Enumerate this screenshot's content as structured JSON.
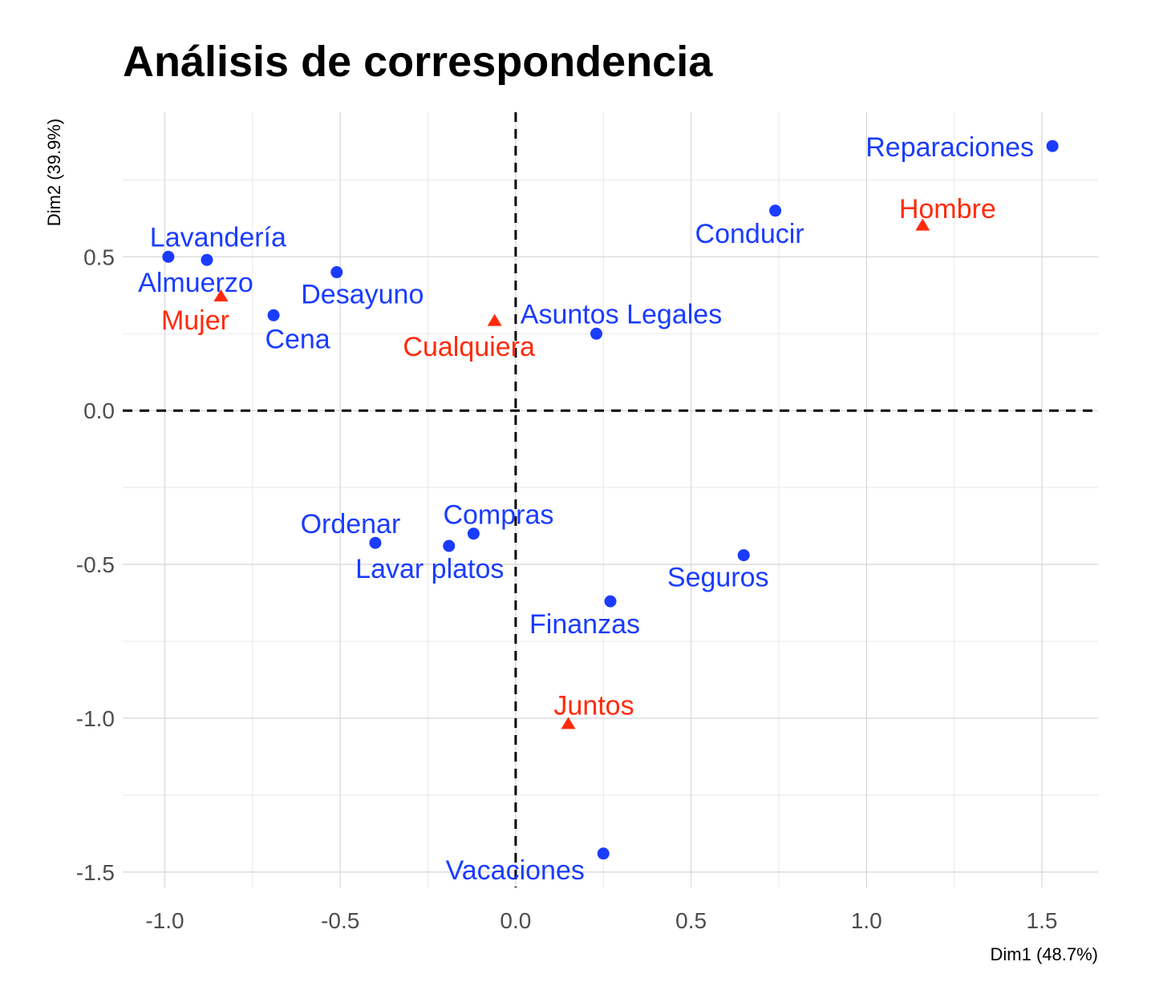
{
  "chart_data": {
    "type": "scatter",
    "title": "Análisis de correspondencia",
    "xlabel": "Dim1 (48.7%)",
    "ylabel": "Dim2 (39.9%)",
    "xlim": [
      -1.12,
      1.66
    ],
    "ylim": [
      -1.55,
      0.97
    ],
    "xticks": [
      -1.0,
      -0.5,
      0.0,
      0.5,
      1.0,
      1.5
    ],
    "xtick_labels": [
      "-1.0",
      "-0.5",
      "0.0",
      "0.5",
      "1.0",
      "1.5"
    ],
    "yticks": [
      -1.5,
      -1.0,
      -0.5,
      0.0,
      0.5
    ],
    "ytick_labels": [
      "-1.5",
      "-1.0",
      "-0.5",
      "0.0",
      "0.5"
    ],
    "grid": true,
    "reference_lines": {
      "x": 0,
      "y": 0,
      "style": "dashed"
    },
    "colors": {
      "tasks": "#1a3cff",
      "roles": "#ff2a0a"
    },
    "series": [
      {
        "marker": "circle",
        "color": "#1a3cff",
        "points": [
          {
            "label": "Lavandería",
            "x": -0.99,
            "y": 0.5
          },
          {
            "label": "Almuerzo",
            "x": -0.88,
            "y": 0.49
          },
          {
            "label": "Desayuno",
            "x": -0.51,
            "y": 0.45
          },
          {
            "label": "Cena",
            "x": -0.69,
            "y": 0.31
          },
          {
            "label": "Asuntos Legales",
            "x": 0.23,
            "y": 0.25
          },
          {
            "label": "Conducir",
            "x": 0.74,
            "y": 0.65
          },
          {
            "label": "Reparaciones",
            "x": 1.53,
            "y": 0.86
          },
          {
            "label": "Ordenar",
            "x": -0.4,
            "y": -0.43
          },
          {
            "label": "Compras",
            "x": -0.12,
            "y": -0.4
          },
          {
            "label": "Lavar platos",
            "x": -0.19,
            "y": -0.44
          },
          {
            "label": "Seguros",
            "x": 0.65,
            "y": -0.47
          },
          {
            "label": "Finanzas",
            "x": 0.27,
            "y": -0.62
          },
          {
            "label": "Vacaciones",
            "x": 0.25,
            "y": -1.44
          }
        ]
      },
      {
        "marker": "triangle",
        "color": "#ff2a0a",
        "points": [
          {
            "label": "Mujer",
            "x": -0.84,
            "y": 0.37
          },
          {
            "label": "Cualquiera",
            "x": -0.06,
            "y": 0.29
          },
          {
            "label": "Hombre",
            "x": 1.16,
            "y": 0.6
          },
          {
            "label": "Juntos",
            "x": 0.15,
            "y": -1.02
          }
        ]
      }
    ]
  }
}
